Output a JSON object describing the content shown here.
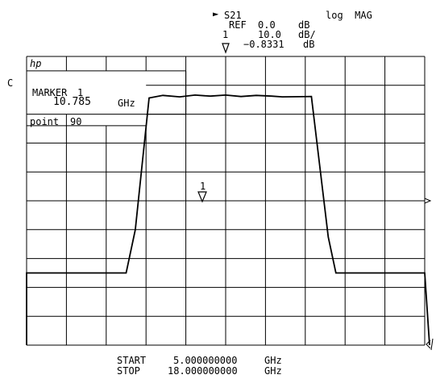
{
  "header": {
    "parameter_arrow": "►",
    "parameter": "S21",
    "format": "log  MAG",
    "ref_label": "REF",
    "ref_value": "0.0",
    "ref_unit": "dB",
    "scale_value": "10.0",
    "scale_unit": "dB/",
    "marker_value": "−0.8331",
    "marker_unit": "dB",
    "marker_number": "1"
  },
  "left_annotation": "C",
  "graticule": {
    "brand": "hp",
    "marker_box": {
      "title": "MARKER",
      "number": "1",
      "freq": "10.785",
      "freq_unit": "GHz",
      "point_label": "point",
      "point_value": "90"
    }
  },
  "trace_marker_label": "1",
  "footer": {
    "start_label": "START",
    "start_value": "5.000000000",
    "start_unit": "GHz",
    "stop_label": "STOP",
    "stop_value": "18.000000000",
    "stop_unit": "GHz"
  },
  "chart_data": {
    "type": "line",
    "x_start": 5.0,
    "x_stop": 18.0,
    "x_unit": "GHz",
    "ylim": [
      -70,
      10
    ],
    "y_unit": "dB",
    "grid": true,
    "marker": {
      "x": 10.785,
      "y": -0.8331
    },
    "series": [
      {
        "x": [
          5.0,
          8.25,
          8.55,
          9.0,
          9.45,
          10.0,
          10.5,
          11.0,
          11.5,
          12.0,
          12.5,
          13.0,
          13.35,
          14.3,
          14.85,
          15.1,
          16.0,
          18.0
        ],
        "y": [
          -50.0,
          -50.0,
          -38.0,
          -1.5,
          -0.8,
          -1.2,
          -0.7,
          -1.0,
          -0.7,
          -1.1,
          -0.8,
          -1.0,
          -1.2,
          -1.1,
          -40.0,
          -50.0,
          -50.0,
          -50.0
        ]
      }
    ]
  }
}
